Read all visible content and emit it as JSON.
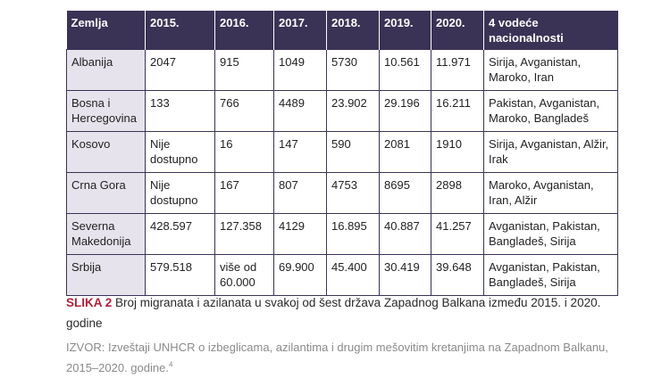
{
  "table": {
    "headers": [
      "Zemlja",
      "2015.",
      "2016.",
      "2017.",
      "2018.",
      "2019.",
      "2020.",
      "4 vodeće nacionalnosti"
    ],
    "rows": [
      [
        "Albanija",
        "2047",
        "915",
        "1049",
        "5730",
        "10.561",
        "11.971",
        "Sirija, Avganistan, Maroko, Iran"
      ],
      [
        "Bosna i Hercegovina",
        "133",
        "766",
        "4489",
        "23.902",
        "29.196",
        "16.211",
        "Pakistan, Avganistan, Maroko, Bangladeš"
      ],
      [
        "Kosovo",
        "Nije dostupno",
        "16",
        "147",
        "590",
        "2081",
        "1910",
        "Sirija, Avganistan, Alžir, Irak"
      ],
      [
        "Crna Gora",
        "Nije dostupno",
        "167",
        "807",
        "4753",
        "8695",
        "2898",
        "Maroko, Avganistan, Iran, Alžir"
      ],
      [
        "Severna Makedonija",
        "428.597",
        "127.358",
        "4129",
        "16.895",
        "40.887",
        "41.257",
        "Avganistan, Pakistan, Bangladeš, Sirija"
      ],
      [
        "Srbija",
        "579.518",
        "više od 60.000",
        "69.900",
        "45.400",
        "30.419",
        "39.648",
        "Avganistan, Pakistan, Bangladeš, Sirija"
      ]
    ]
  },
  "caption": {
    "label": "SLIKA 2",
    "text": " Broj migranata i azilanata u svakoj od šest država Zapadnog Balkana između 2015. i 2020. godine"
  },
  "source": {
    "label": "IZVOR:",
    "text": " Izveštaji UNHCR o izbeglicama, azilantima i drugim mešovitim kretanjima na Zapadnom Balkanu, 2015–2020. godine.",
    "footnote": "4"
  },
  "colors": {
    "header_bg": "#3b3356",
    "country_bg": "#e6e3ec",
    "caption_label": "#b3203a",
    "source_text": "#8a8a8a"
  }
}
